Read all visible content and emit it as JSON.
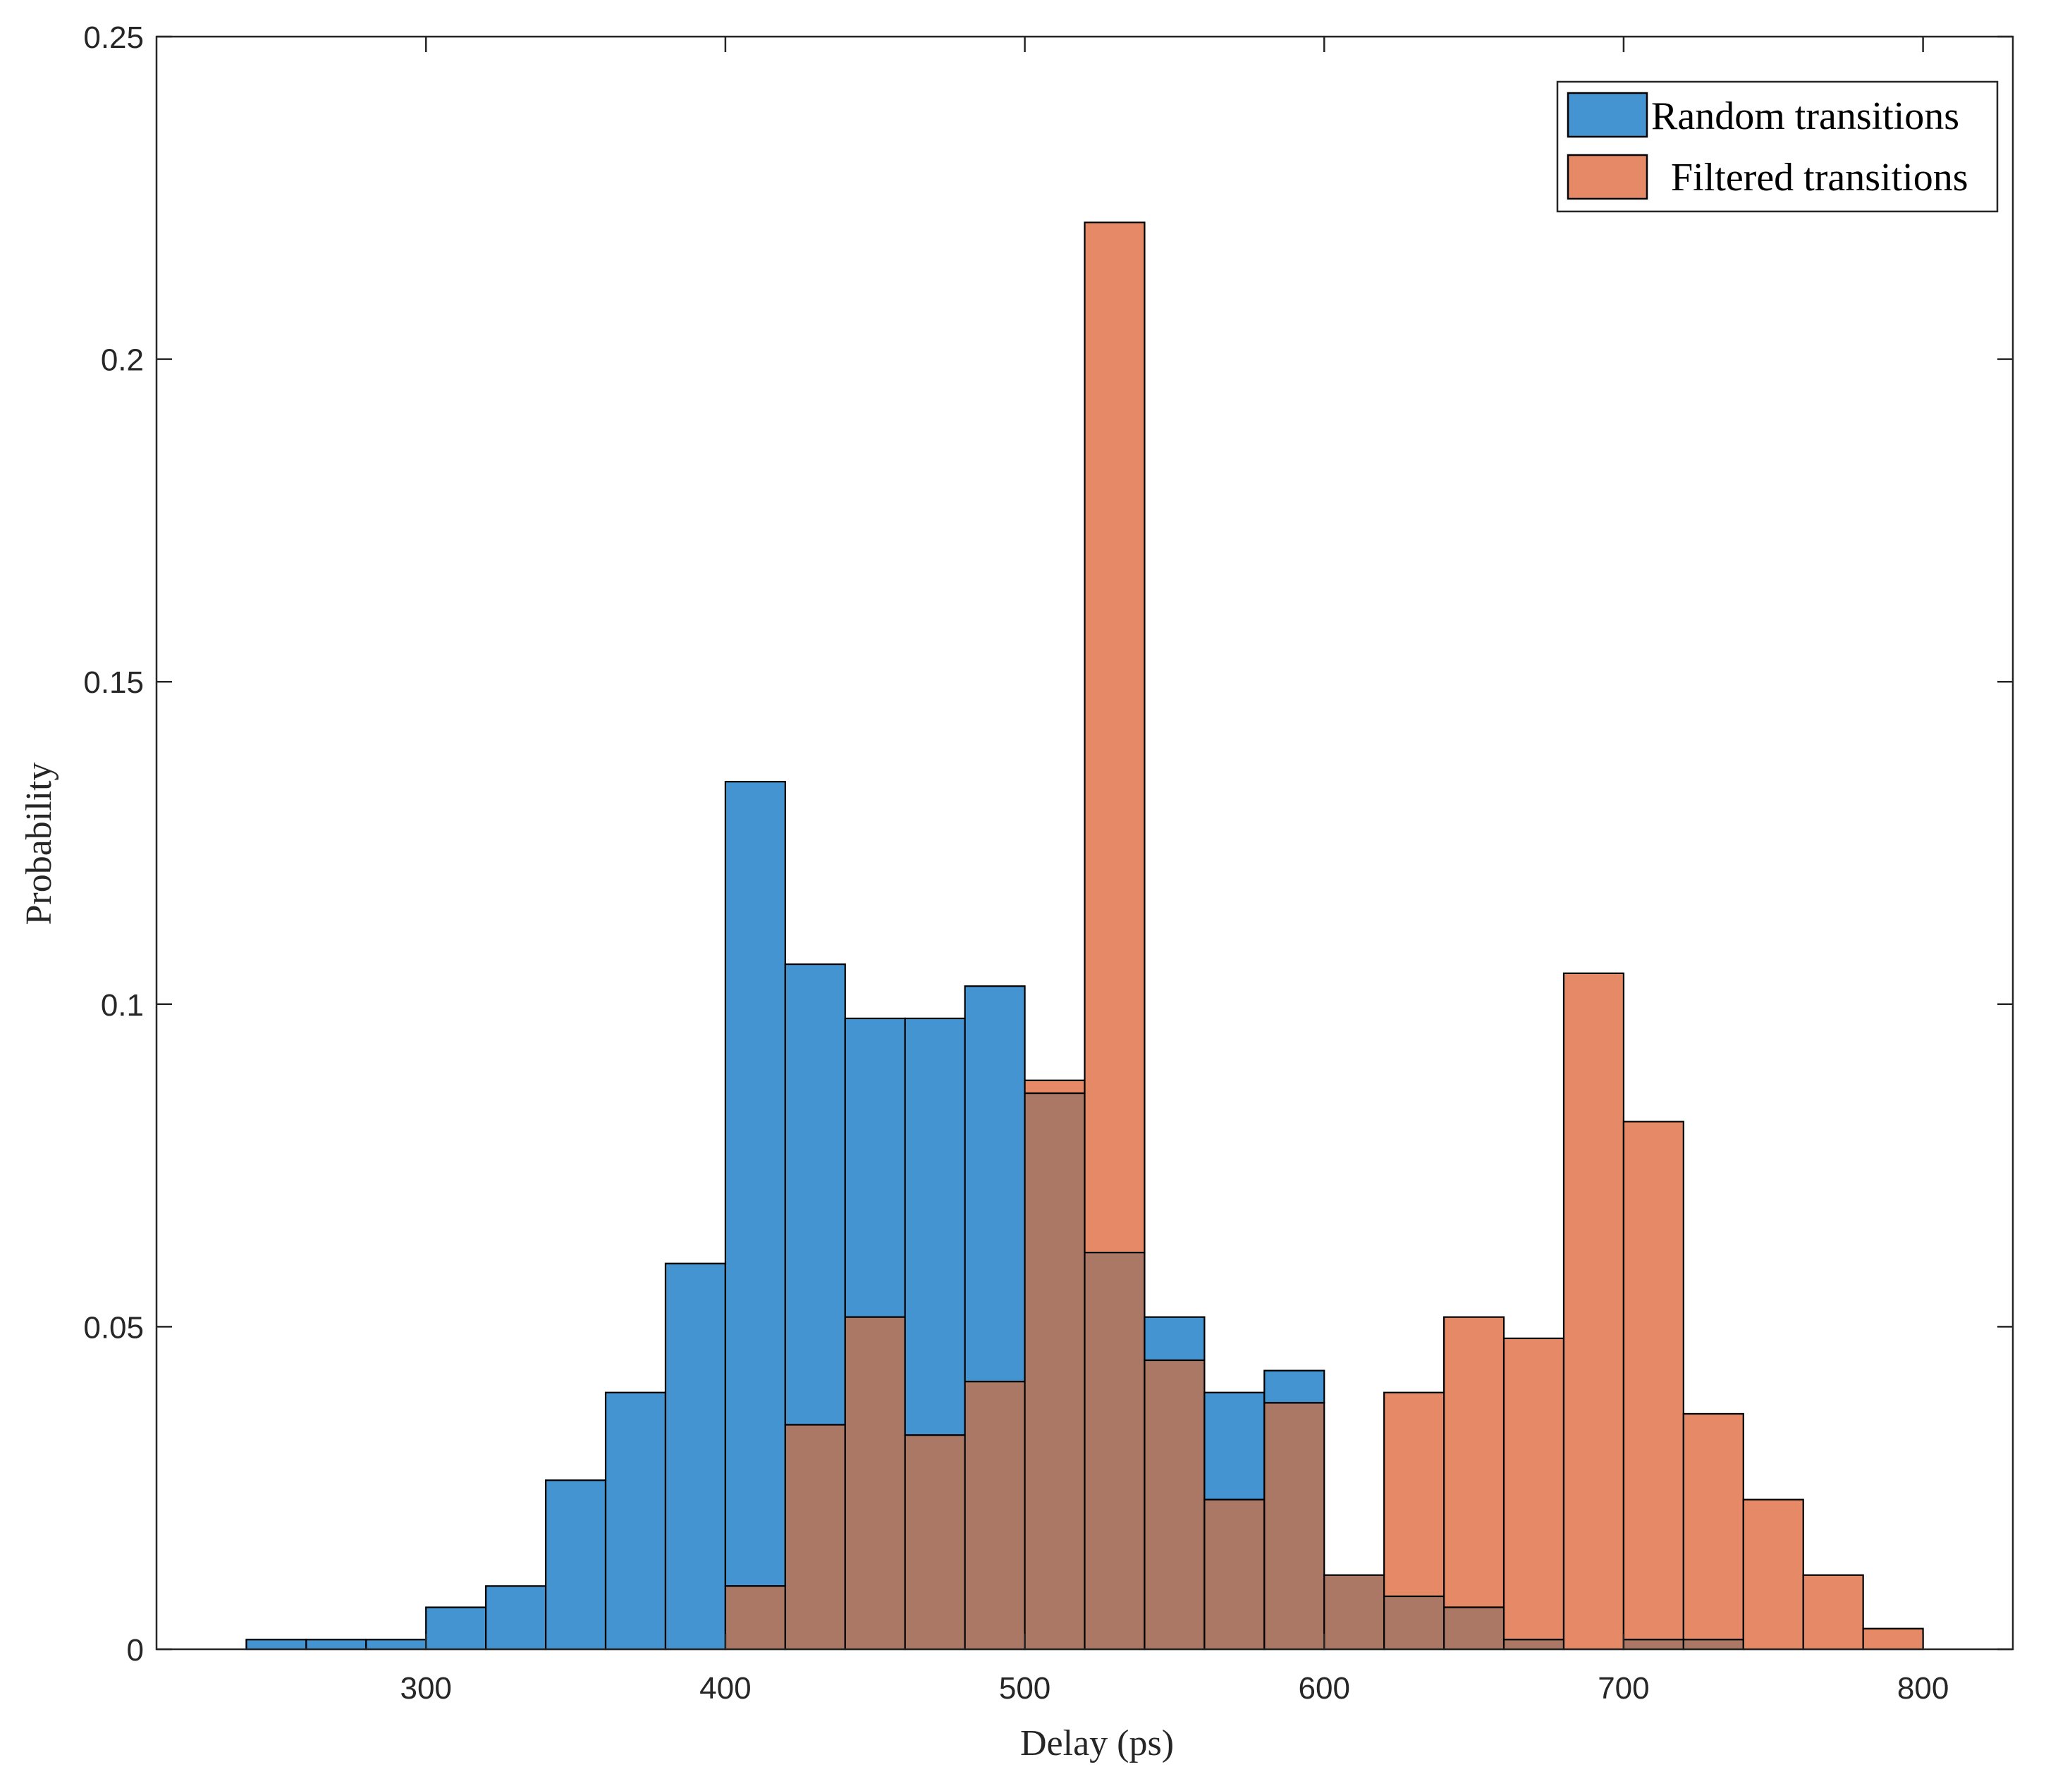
{
  "chart_data": {
    "type": "bar",
    "title": "",
    "xlabel": "Delay (ps)",
    "ylabel": "Probability",
    "xlim": [
      210,
      830
    ],
    "ylim": [
      0,
      0.25
    ],
    "bin_width": 20,
    "grid": false,
    "legend_position": "top-right",
    "xticks": [
      300,
      400,
      500,
      600,
      700,
      800
    ],
    "xtick_labels": [
      "300",
      "400",
      "500",
      "600",
      "700",
      "800"
    ],
    "yticks": [
      0,
      0.05,
      0.1,
      0.15,
      0.2,
      0.25
    ],
    "ytick_labels": [
      "0",
      "0.05",
      "0.1",
      "0.15",
      "0.2",
      "0.25"
    ],
    "series": [
      {
        "name": "Random transitions",
        "color": "#4394d1",
        "bin_edges_start": [
          240,
          260,
          280,
          300,
          320,
          340,
          360,
          380,
          400,
          420,
          440,
          460,
          480,
          500,
          520,
          540,
          560,
          580,
          600,
          620,
          640,
          660,
          680,
          700,
          720
        ],
        "values": [
          0.0015,
          0.0015,
          0.0015,
          0.0065,
          0.0098,
          0.0262,
          0.0398,
          0.0598,
          0.1345,
          0.1062,
          0.0978,
          0.0978,
          0.1028,
          0.0862,
          0.0615,
          0.0515,
          0.0398,
          0.0432,
          0.0115,
          0.0082,
          0.0065,
          0.0015,
          0,
          0.0015,
          0.0015
        ]
      },
      {
        "name": "Filtered transitions",
        "color": "#e58966",
        "bin_edges_start": [
          400,
          420,
          440,
          460,
          480,
          500,
          520,
          540,
          560,
          580,
          600,
          620,
          640,
          660,
          680,
          700,
          720,
          740,
          760,
          780
        ],
        "values": [
          0.0098,
          0.0348,
          0.0515,
          0.0332,
          0.0415,
          0.0882,
          0.2212,
          0.0448,
          0.0232,
          0.0382,
          0.0115,
          0.0398,
          0.0515,
          0.0482,
          0.1048,
          0.0818,
          0.0365,
          0.0232,
          0.0115,
          0.0032
        ]
      }
    ],
    "overlap_color": "#ab7866"
  }
}
